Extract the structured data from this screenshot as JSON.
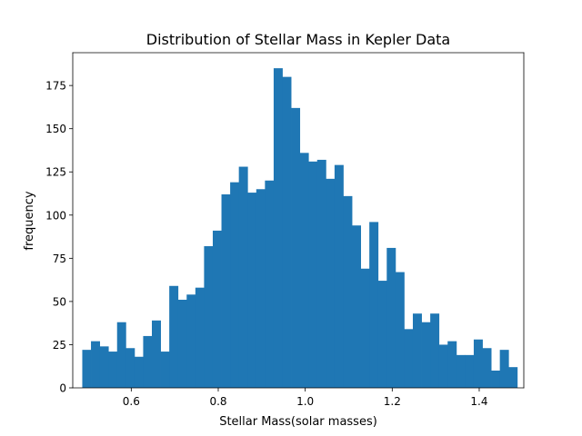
{
  "chart_data": {
    "type": "bar",
    "title": "Distribution of Stellar Mass in Kepler Data",
    "xlabel": "Stellar Mass(solar masses)",
    "ylabel": "frequency",
    "xlim": [
      0.4655,
      1.5025
    ],
    "ylim": [
      0,
      194
    ],
    "xticks": [
      0.6,
      0.8,
      1.0,
      1.2,
      1.4
    ],
    "xtick_labels": [
      "0.6",
      "0.8",
      "1.0",
      "1.2",
      "1.4"
    ],
    "yticks": [
      0,
      25,
      50,
      75,
      100,
      125,
      150,
      175
    ],
    "ytick_labels": [
      "0",
      "25",
      "50",
      "75",
      "100",
      "125",
      "150",
      "175"
    ],
    "bar_color": "#1f77b4",
    "bin_start": 0.4874,
    "bin_width": 0.02,
    "values": [
      22,
      27,
      24,
      21,
      38,
      23,
      18,
      30,
      39,
      21,
      59,
      51,
      54,
      58,
      82,
      91,
      112,
      119,
      128,
      113,
      115,
      120,
      185,
      180,
      162,
      136,
      131,
      132,
      121,
      129,
      111,
      94,
      69,
      96,
      62,
      81,
      67,
      34,
      43,
      38,
      43,
      25,
      27,
      19,
      19,
      28,
      23,
      10,
      22,
      12
    ],
    "grid": false,
    "legend": "none"
  }
}
